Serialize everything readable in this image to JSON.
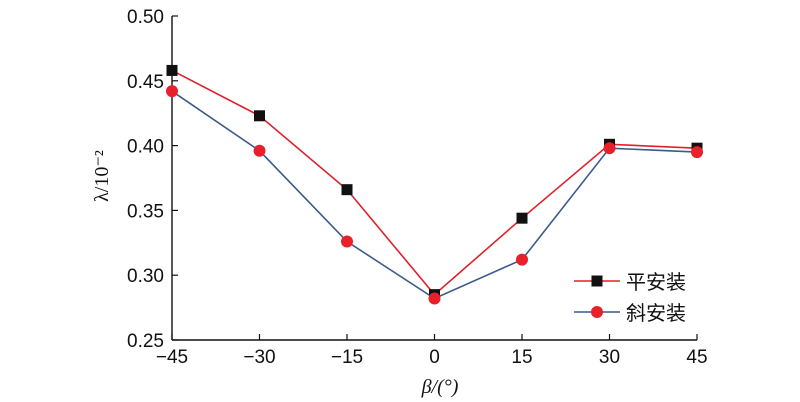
{
  "chart_data": {
    "type": "line",
    "x": [
      -45,
      -30,
      -15,
      0,
      15,
      30,
      45
    ],
    "xlabel": "β/(°)",
    "ylabel": "λ/10⁻²",
    "xlim": [
      -45,
      45
    ],
    "ylim": [
      0.25,
      0.5
    ],
    "xticks": [
      "−45",
      "−30",
      "−15",
      "0",
      "15",
      "30",
      "45"
    ],
    "yticks": [
      "0.25",
      "0.30",
      "0.35",
      "0.40",
      "0.45",
      "0.50"
    ],
    "grid": false,
    "legend_position": "bottom-right",
    "series": [
      {
        "name": "平安装",
        "values": [
          0.458,
          0.423,
          0.366,
          0.285,
          0.344,
          0.401,
          0.398
        ],
        "line_color": "#e0202a",
        "marker": "square",
        "marker_color": "#111111"
      },
      {
        "name": "斜安装",
        "values": [
          0.442,
          0.396,
          0.326,
          0.282,
          0.312,
          0.398,
          0.395
        ],
        "line_color": "#3a5a8c",
        "marker": "circle",
        "marker_color": "#e8202a"
      }
    ]
  }
}
